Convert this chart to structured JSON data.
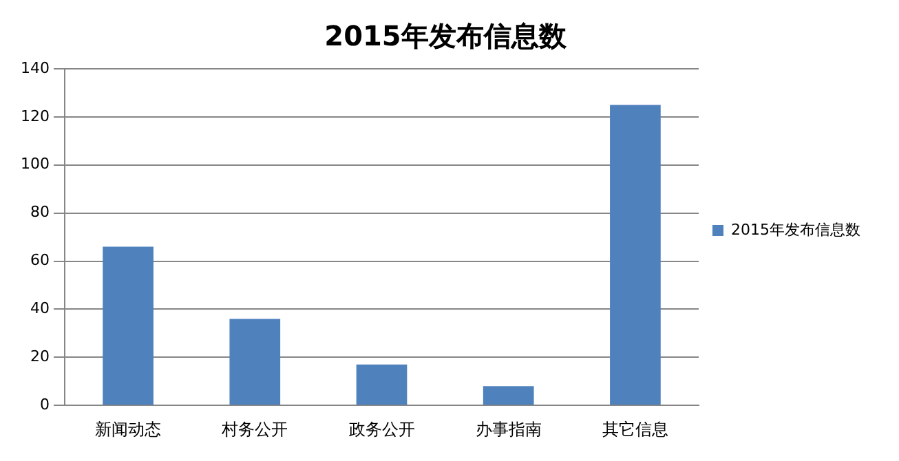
{
  "chart_data": {
    "type": "bar",
    "title": "2015年发布信息数",
    "categories": [
      "新闻动态",
      "村务公开",
      "政务公开",
      "办事指南",
      "其它信息"
    ],
    "series": [
      {
        "name": "2015年发布信息数",
        "color": "#4f81bd",
        "values": [
          66,
          36,
          17,
          8,
          125
        ]
      }
    ],
    "ylim": [
      0,
      140
    ],
    "yticks": [
      0,
      20,
      40,
      60,
      80,
      100,
      120,
      140
    ],
    "grid": "y",
    "legend": "right"
  }
}
